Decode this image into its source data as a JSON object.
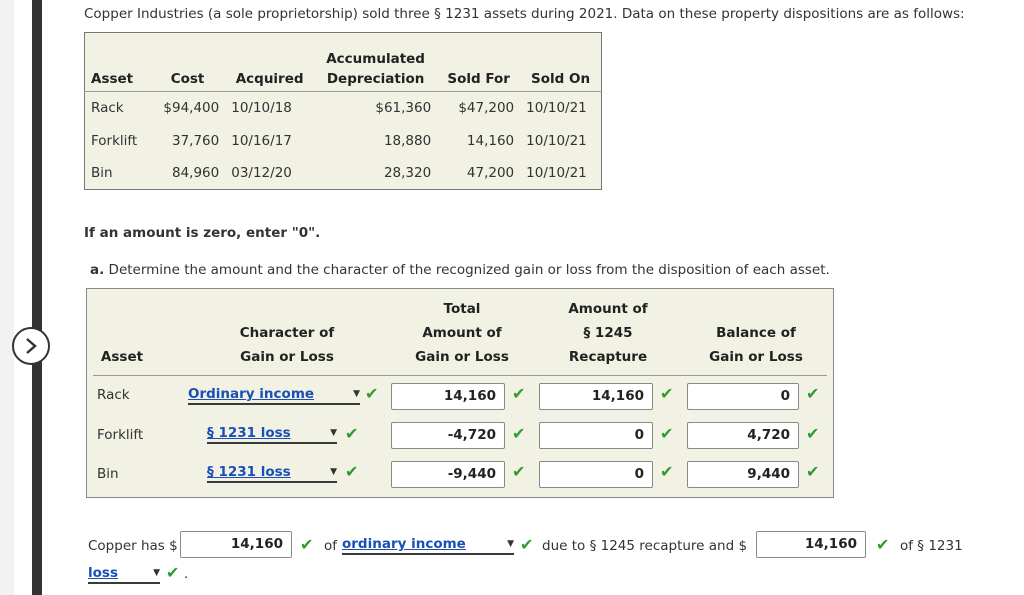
{
  "intro": "Copper Industries (a sole proprietorship) sold three § 1231 assets during 2021. Data on these property dispositions are as follows:",
  "given": {
    "headers": {
      "accum_top": "Accumulated",
      "asset": "Asset",
      "cost": "Cost",
      "acquired": "Acquired",
      "depreciation": "Depreciation",
      "sold_for": "Sold For",
      "sold_on": "Sold On"
    },
    "rows": [
      {
        "asset": "Rack",
        "cost": "$94,400",
        "acquired": "10/10/18",
        "accum": "$61,360",
        "sold_for": "$47,200",
        "sold_on": "10/10/21"
      },
      {
        "asset": "Forklift",
        "cost": "37,760",
        "acquired": "10/16/17",
        "accum": "18,880",
        "sold_for": "14,160",
        "sold_on": "10/10/21"
      },
      {
        "asset": "Bin",
        "cost": "84,960",
        "acquired": "03/12/20",
        "accum": "28,320",
        "sold_for": "47,200",
        "sold_on": "10/10/21"
      }
    ]
  },
  "note": "If an amount is zero, enter \"0\".",
  "question": {
    "letter": "a.",
    "text": "Determine the amount and the character of the recognized gain or loss from the disposition of each asset."
  },
  "answer": {
    "headers": {
      "asset": "Asset",
      "char_1": "Character of",
      "char_2": "Gain or Loss",
      "total_1": "Total",
      "total_2": "Amount of",
      "total_3": "Gain or Loss",
      "rec_1": "Amount of",
      "rec_2": "§ 1245",
      "rec_3": "Recapture",
      "bal_1": "Balance of",
      "bal_2": "Gain or Loss"
    },
    "rows": [
      {
        "asset": "Rack",
        "character": "Ordinary income",
        "total": "14,160",
        "recapture": "14,160",
        "balance": "0"
      },
      {
        "asset": "Forklift",
        "character": "§ 1231 loss",
        "total": "-4,720",
        "recapture": "0",
        "balance": "4,720"
      },
      {
        "asset": "Bin",
        "character": "§ 1231 loss",
        "total": "-9,440",
        "recapture": "0",
        "balance": "9,440"
      }
    ]
  },
  "summary": {
    "prefix": "Copper has $",
    "amount1": "14,160",
    "of_text": "of",
    "select1": "ordinary income",
    "due_text": "due to § 1245 recapture and $",
    "amount2": "14,160",
    "of_1231": "of § 1231",
    "select2": "loss",
    "period": "."
  },
  "colors": {
    "panel_bg": "#f1f1e4",
    "link_blue": "#1a4fb5",
    "check_green": "#2e9c2e"
  },
  "icons": {
    "nav": "chevron-right-icon",
    "check": "check-icon",
    "dropdown": "dropdown-arrow-icon"
  }
}
